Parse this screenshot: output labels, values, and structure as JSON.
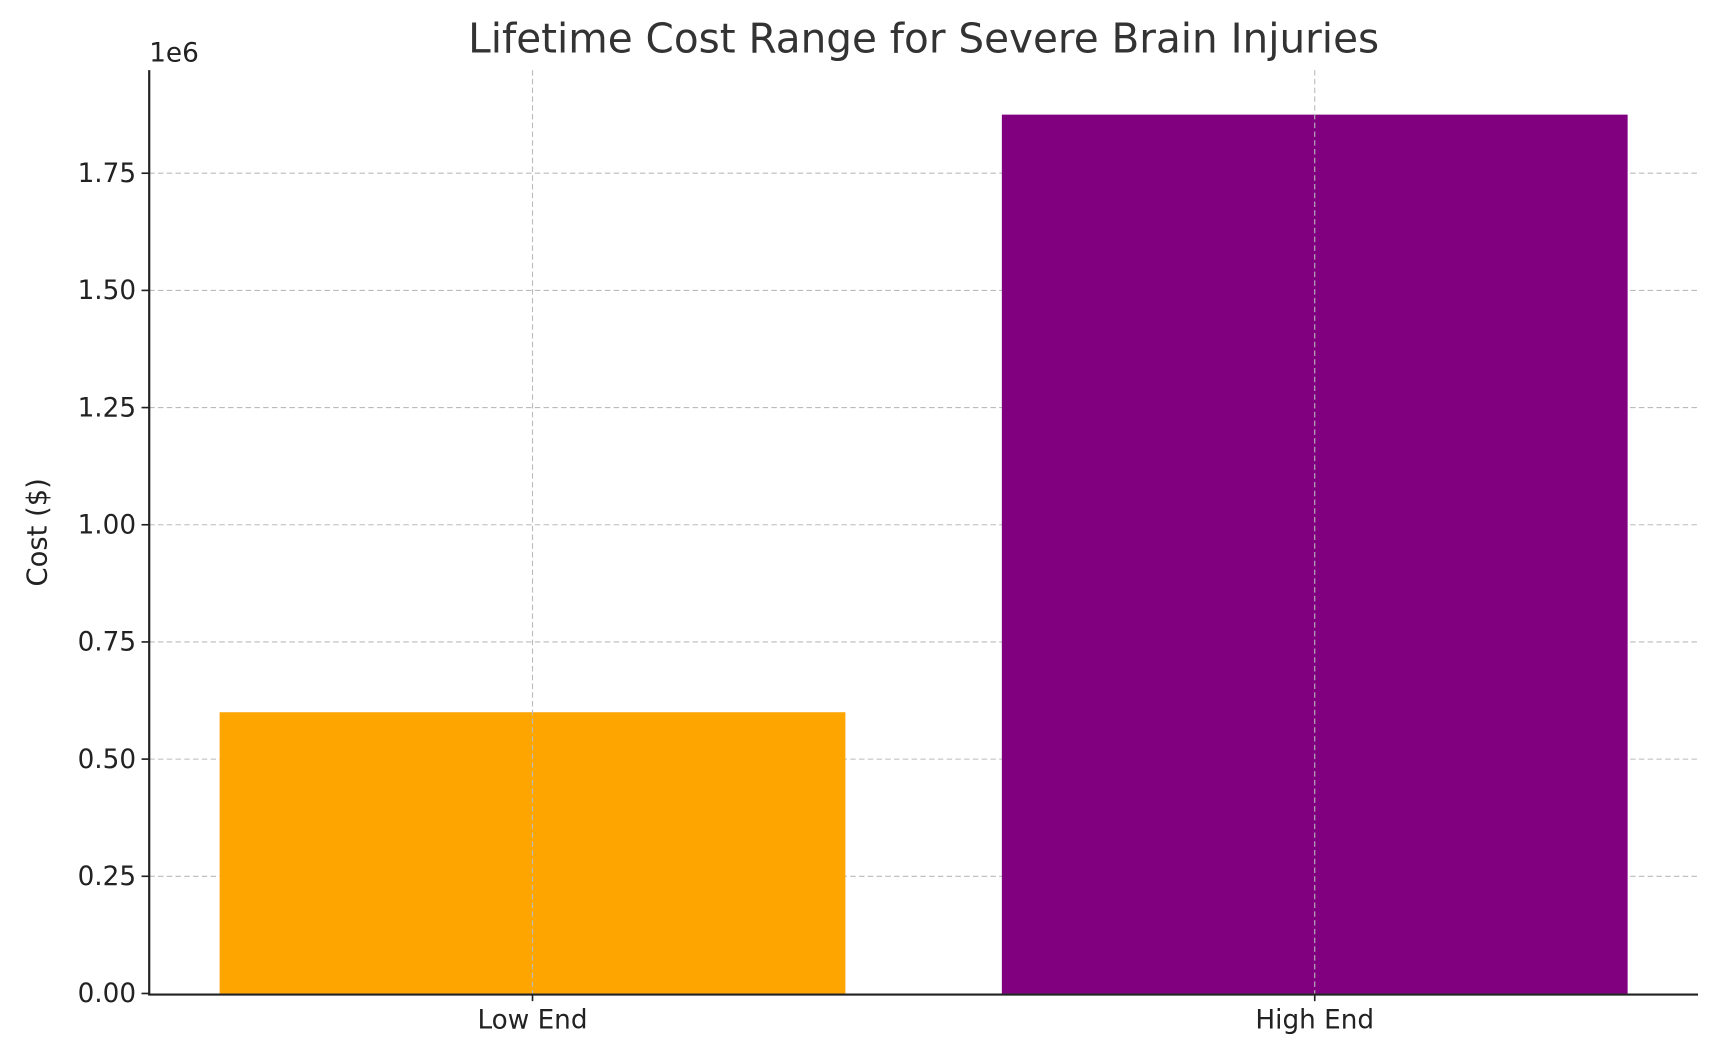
{
  "chart_data": {
    "type": "bar",
    "title": "Lifetime Cost Range for Severe Brain Injuries",
    "xlabel": "",
    "ylabel": "Cost ($)",
    "offset_label": "1e6",
    "categories": [
      "Low End",
      "High End"
    ],
    "values": [
      600000,
      1875000
    ],
    "colors": [
      "#FFA500",
      "#800080"
    ],
    "ylim": [
      0,
      1970000
    ],
    "xlim": [
      -0.49,
      1.49
    ],
    "yticks": [
      0,
      250000,
      500000,
      750000,
      1000000,
      1250000,
      1500000,
      1750000
    ],
    "ytick_labels": [
      "0.00",
      "0.25",
      "0.50",
      "0.75",
      "1.00",
      "1.25",
      "1.50",
      "1.75"
    ],
    "grid": true
  }
}
